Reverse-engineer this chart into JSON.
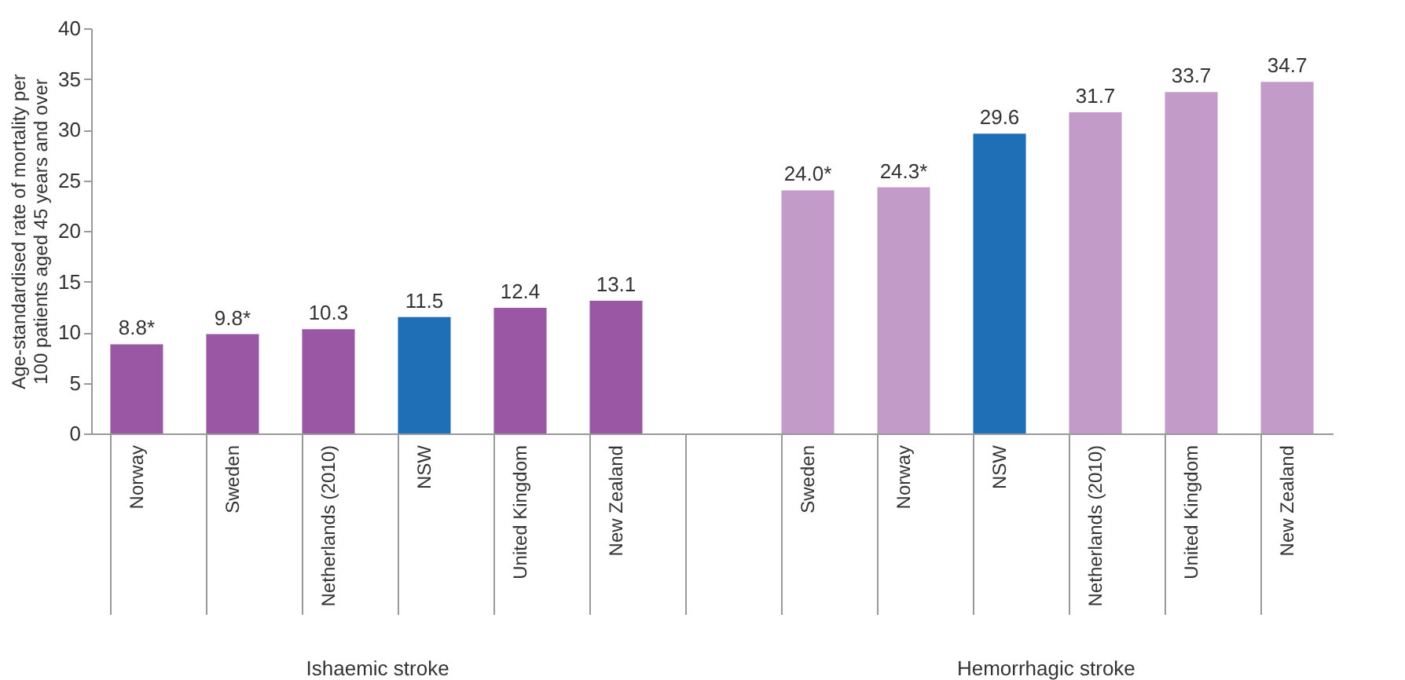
{
  "chart_data": {
    "type": "bar",
    "ylabel": "Age-standardised rate of mortality per 100 patients aged 45 years and over",
    "categories": [
      "Norway",
      "Sweden",
      "Netherlands (2010)",
      "NSW",
      "United Kingdom",
      "New Zealand",
      null,
      "Sweden",
      "Norway",
      "NSW",
      "Netherlands (2010)",
      "United Kingdom",
      "New Zealand"
    ],
    "values": [
      8.8,
      9.8,
      10.3,
      11.5,
      12.4,
      13.1,
      null,
      24.0,
      24.3,
      29.6,
      31.7,
      33.7,
      34.7
    ],
    "colors": [
      "#9a57a4",
      "#9a57a4",
      "#9a57a4",
      "#1f6fb6",
      "#9a57a4",
      "#9a57a4",
      "#ffffff",
      "#c39bc9",
      "#c39bc9",
      "#1f6fb6",
      "#c39bc9",
      "#c39bc9",
      "#c39bc9"
    ],
    "value_labels": [
      "8.8*",
      "9.8*",
      "10.3",
      "11.5",
      "12.4",
      "13.1",
      null,
      "24.0*",
      "24.3*",
      "29.6",
      "31.7",
      "33.7",
      "34.7"
    ],
    "annotations": [
      "Ishaemic stroke",
      "Hemorrhagic stroke"
    ],
    "ylim": [
      0,
      40
    ],
    "yticks": [
      0,
      5,
      10,
      15,
      20,
      25,
      30,
      35,
      40
    ],
    "grid": false
  }
}
